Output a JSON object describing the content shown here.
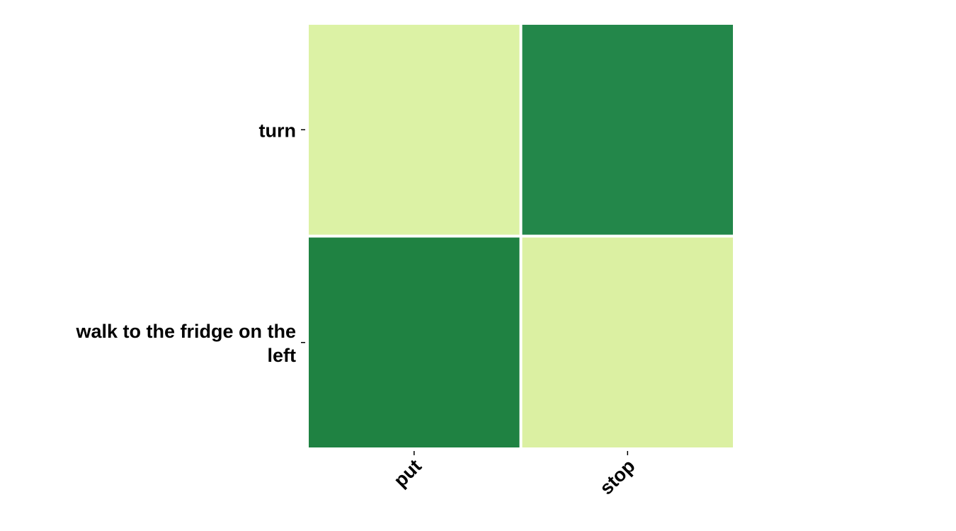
{
  "chart_data": {
    "type": "heatmap",
    "rows": [
      "turn",
      "walk to the fridge on the left"
    ],
    "columns": [
      "put",
      "stop"
    ],
    "values": [
      [
        0.12,
        0.9
      ],
      [
        0.94,
        0.14
      ]
    ],
    "value_range": [
      0,
      1
    ],
    "colormap": "YlGn",
    "colors": [
      "#dcf2a5",
      "#23874a",
      "#1f8242",
      "#dbf0a2"
    ],
    "title": "",
    "xlabel": "",
    "ylabel": "",
    "grid": false,
    "colorbar": false
  }
}
